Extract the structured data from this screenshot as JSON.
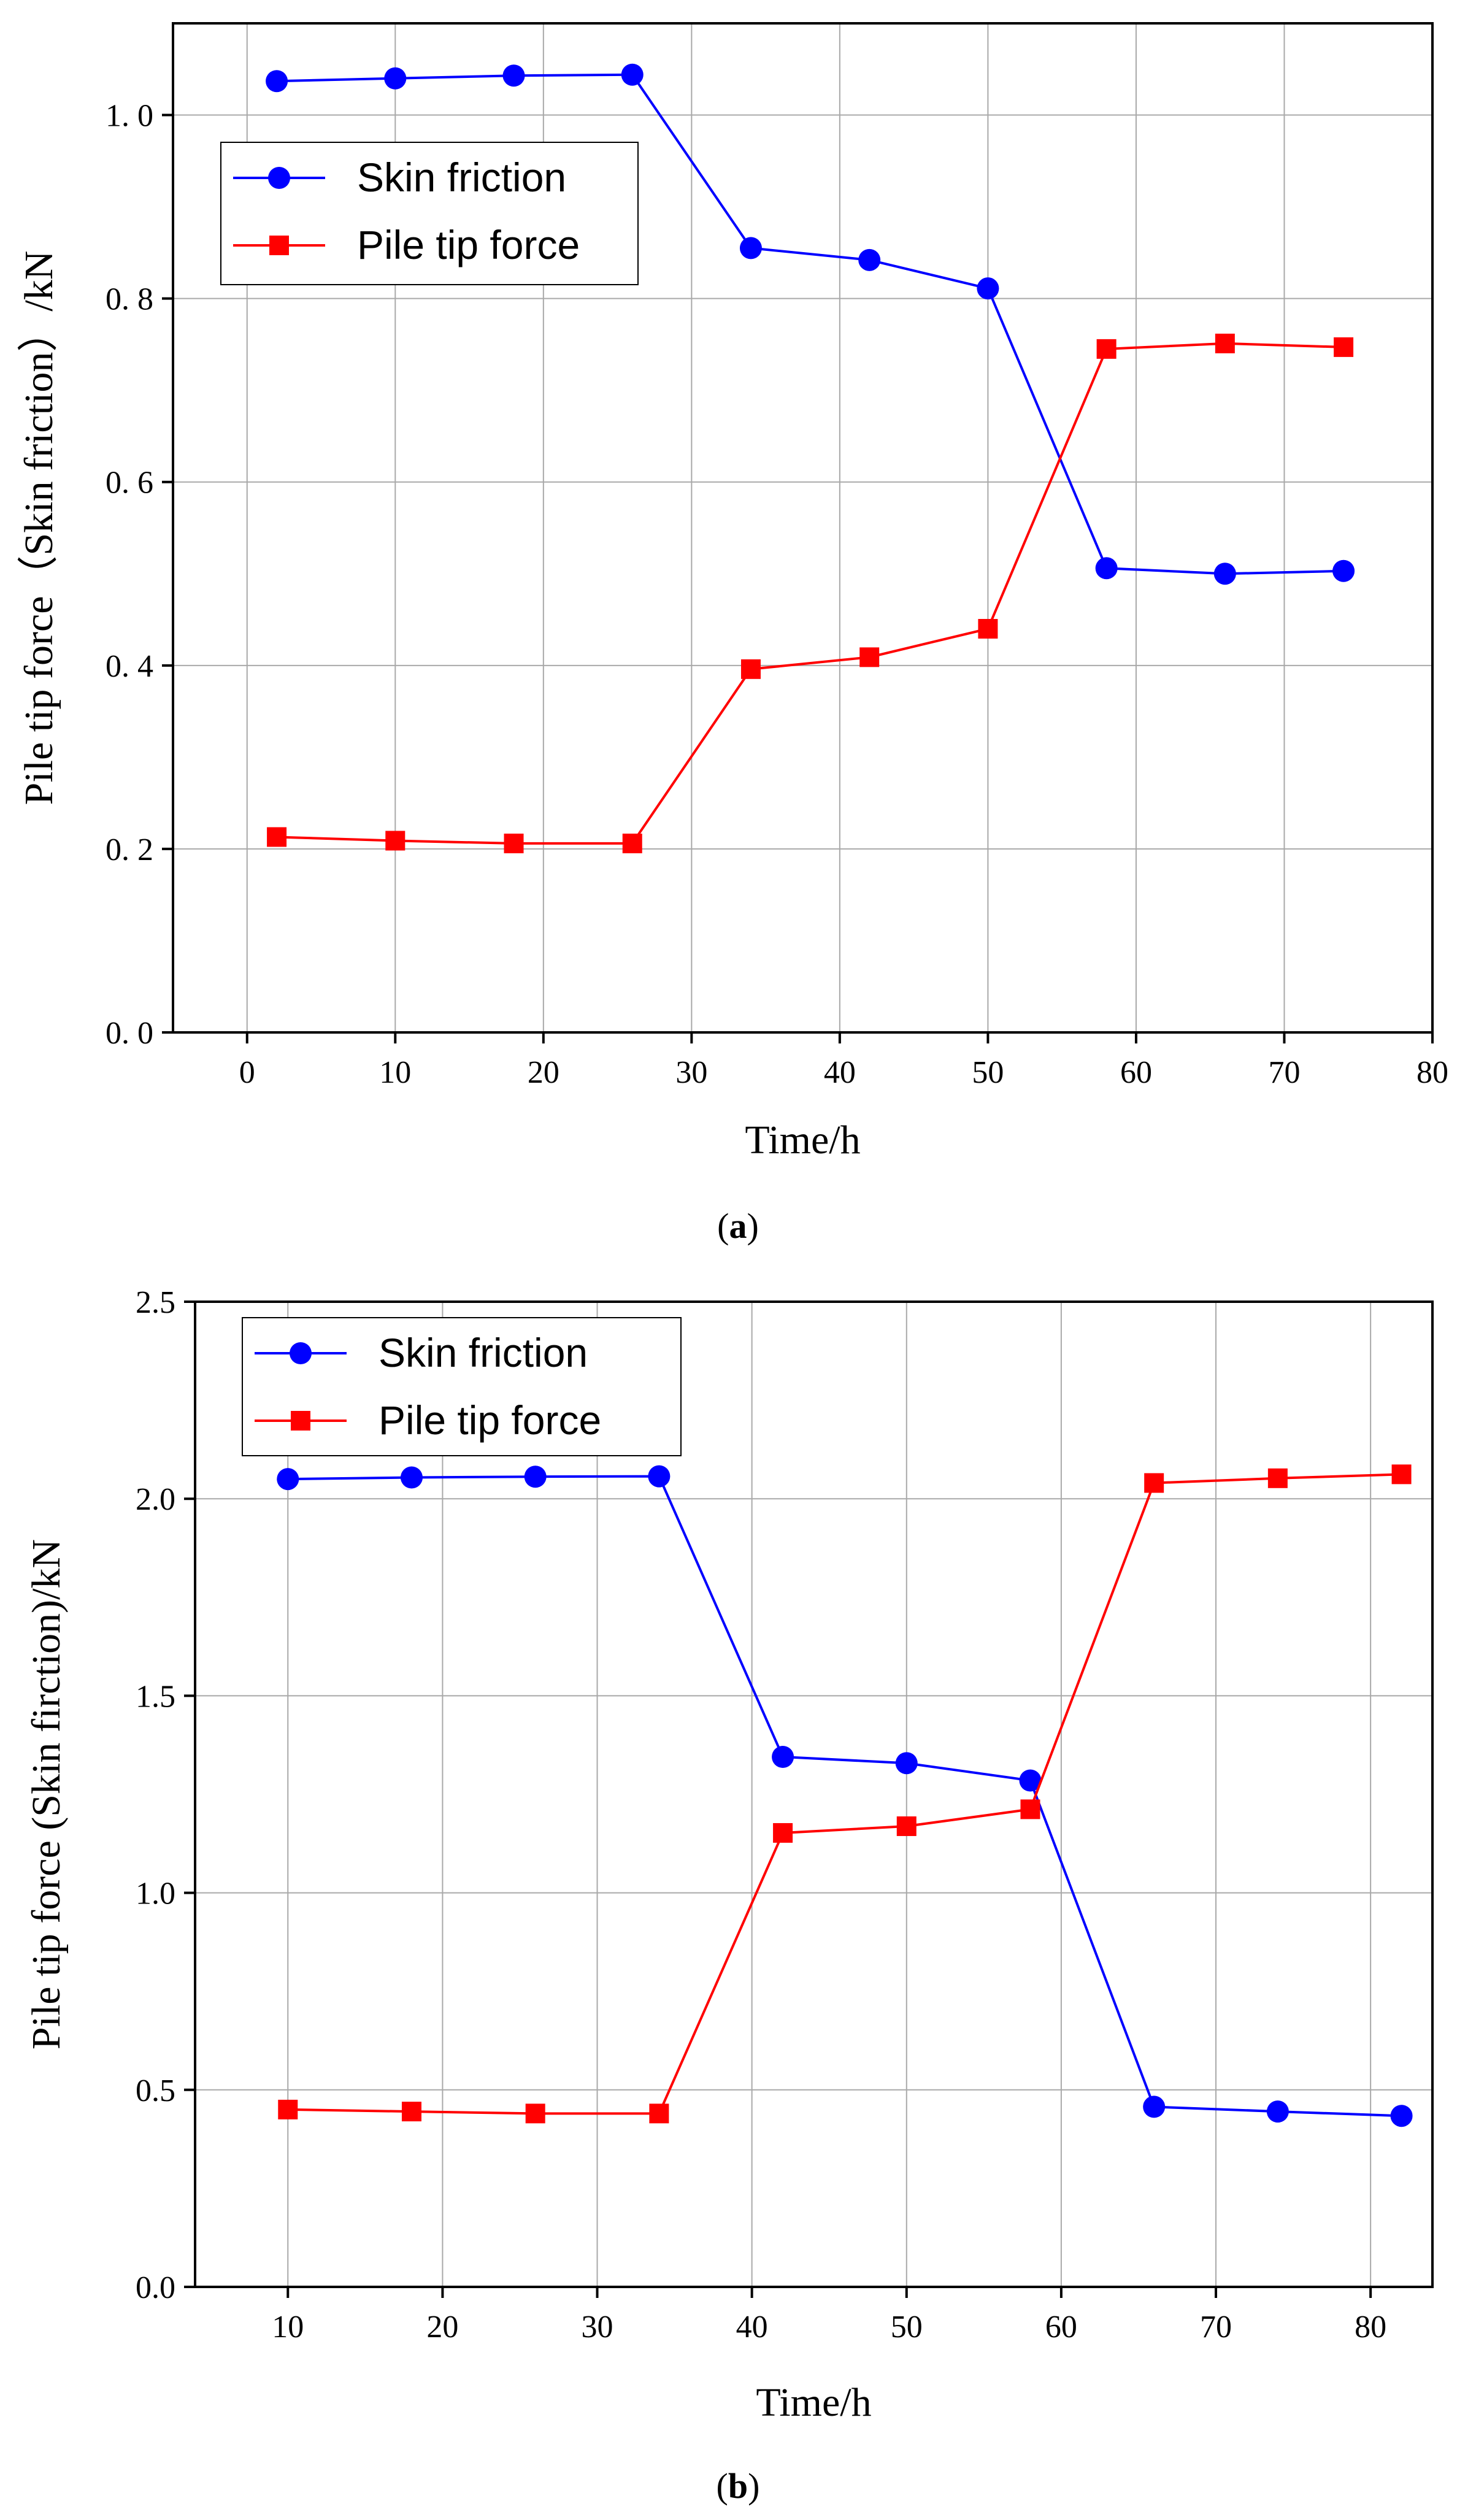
{
  "chart_data": [
    {
      "type": "line",
      "panel": "a",
      "caption_label": "a",
      "xlabel": "Time/h",
      "ylabel": "Pile tip force（Skin friction）/kN",
      "xlim": [
        -5,
        80
      ],
      "ylim": [
        0,
        1.1
      ],
      "xticks": [
        0,
        10,
        20,
        30,
        40,
        50,
        60,
        70,
        80
      ],
      "xtick_labels": [
        "0",
        "10",
        "20",
        "30",
        "40",
        "50",
        "60",
        "70",
        "80"
      ],
      "yticks": [
        0,
        0.2,
        0.4,
        0.6,
        0.8,
        1.0
      ],
      "ytick_labels": [
        "0. 0",
        "0. 2",
        "0. 4",
        "0. 6",
        "0. 8",
        "1. 0"
      ],
      "grid": true,
      "legend_position": "top-left",
      "series": [
        {
          "name": "Skin friction",
          "color": "#0000ff",
          "marker": "circle",
          "x": [
            2,
            10,
            18,
            26,
            34,
            42,
            50,
            58,
            66,
            74
          ],
          "y": [
            1.037,
            1.04,
            1.043,
            1.044,
            0.855,
            0.842,
            0.811,
            0.506,
            0.5,
            0.503
          ]
        },
        {
          "name": "Pile tip force",
          "color": "#ff0000",
          "marker": "square",
          "x": [
            2,
            10,
            18,
            26,
            34,
            42,
            50,
            58,
            66,
            74
          ],
          "y": [
            0.213,
            0.209,
            0.206,
            0.206,
            0.396,
            0.409,
            0.44,
            0.745,
            0.751,
            0.747
          ]
        }
      ]
    },
    {
      "type": "line",
      "panel": "b",
      "caption_label": "b",
      "xlabel": "Time/h",
      "ylabel": "Pile tip force (Skin firction)/kN",
      "xlim": [
        4,
        84
      ],
      "ylim": [
        0,
        2.5
      ],
      "xticks": [
        10,
        20,
        30,
        40,
        50,
        60,
        70,
        80
      ],
      "xtick_labels": [
        "10",
        "20",
        "30",
        "40",
        "50",
        "60",
        "70",
        "80"
      ],
      "yticks": [
        0,
        0.5,
        1.0,
        1.5,
        2.0,
        2.5
      ],
      "ytick_labels": [
        "0.0",
        "0.5",
        "1.0",
        "1.5",
        "2.0",
        "2.5"
      ],
      "grid": true,
      "legend_position": "top-left",
      "series": [
        {
          "name": "Skin friction",
          "color": "#0000ff",
          "marker": "circle",
          "x": [
            10,
            18,
            26,
            34,
            42,
            50,
            58,
            66,
            74,
            82
          ],
          "y": [
            2.05,
            2.054,
            2.056,
            2.057,
            1.345,
            1.329,
            1.285,
            0.457,
            0.445,
            0.434
          ]
        },
        {
          "name": "Pile tip force",
          "color": "#ff0000",
          "marker": "square",
          "x": [
            10,
            18,
            26,
            34,
            42,
            50,
            58,
            66,
            74,
            82
          ],
          "y": [
            0.45,
            0.445,
            0.44,
            0.44,
            1.152,
            1.169,
            1.212,
            2.04,
            2.052,
            2.062
          ]
        }
      ]
    }
  ]
}
